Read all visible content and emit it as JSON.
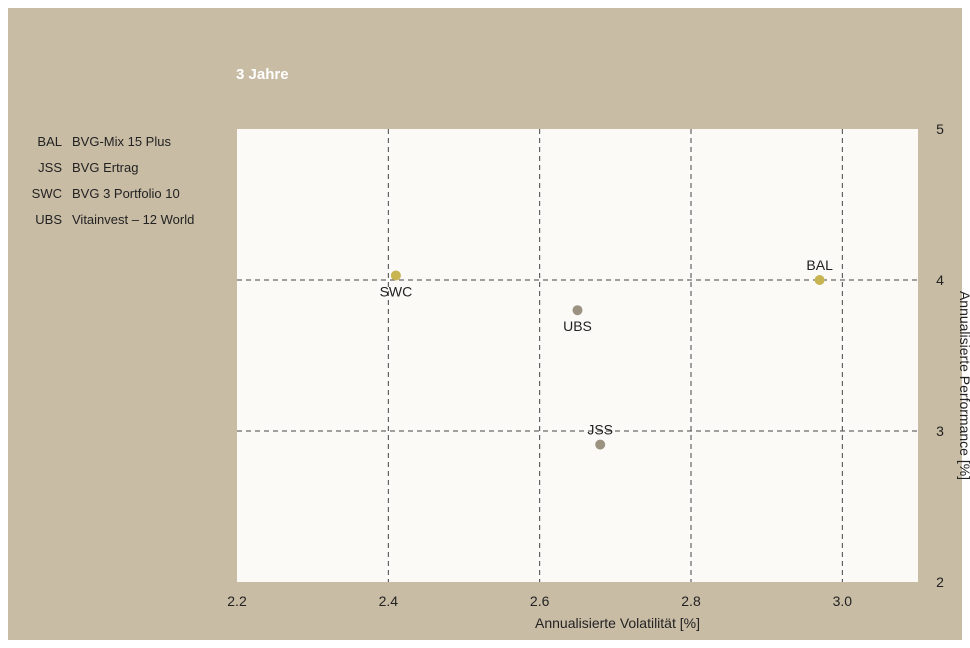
{
  "subtitle": "3 Jahre",
  "legend": [
    {
      "code": "BAL",
      "name": "BVG-Mix 15 Plus"
    },
    {
      "code": "JSS",
      "name": "BVG Ertrag"
    },
    {
      "code": "SWC",
      "name": "BVG 3 Portfolio 10"
    },
    {
      "code": "UBS",
      "name": "Vitainvest – 12 World"
    }
  ],
  "colors": {
    "background": "#c9bca5",
    "plot_area": "#fbfaf7",
    "gold": "#c8b450",
    "grey": "#9b9282"
  },
  "chart_data": {
    "type": "scatter",
    "subtitle": "3 Jahre",
    "xlabel": "Annualisierte Volatilität [%]",
    "ylabel": "Annualisierte Performance [%]",
    "xlim": [
      2.2,
      3.1
    ],
    "ylim": [
      2,
      5
    ],
    "xticks": [
      "2.2",
      "2.4",
      "2.6",
      "2.8",
      "3.0"
    ],
    "yticks": [
      "2",
      "3",
      "4",
      "5"
    ],
    "grid": "dashed",
    "y_axis_side": "right",
    "points": [
      {
        "label": "BAL",
        "x": 2.97,
        "y": 4.0,
        "color": "#c8b450",
        "label_pos": "above"
      },
      {
        "label": "JSS",
        "x": 2.68,
        "y": 2.91,
        "color": "#9b9282",
        "label_pos": "above"
      },
      {
        "label": "SWC",
        "x": 2.41,
        "y": 4.03,
        "color": "#c8b450",
        "label_pos": "below"
      },
      {
        "label": "UBS",
        "x": 2.65,
        "y": 3.8,
        "color": "#9b9282",
        "label_pos": "below"
      }
    ]
  }
}
